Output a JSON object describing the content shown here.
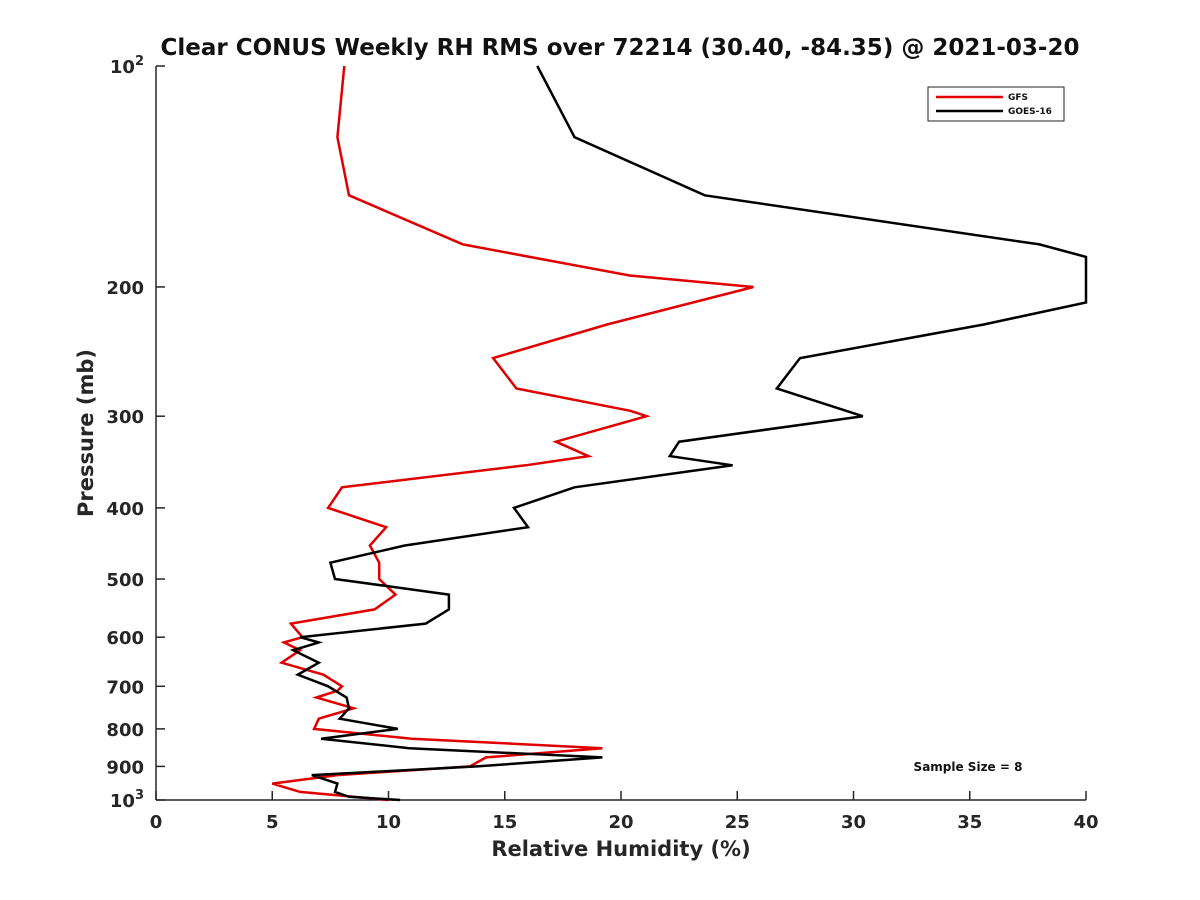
{
  "chart_data": {
    "type": "line",
    "title": "Clear CONUS Weekly RH RMS over 72214 (30.40, -84.35) @ 2021-03-20",
    "xlabel": "Relative Humidity (%)",
    "ylabel": "Pressure (mb)",
    "xlim": [
      0,
      40
    ],
    "ylim": [
      100,
      1000
    ],
    "yscale": "log",
    "yreversed": true,
    "x_ticks": [
      0,
      5,
      10,
      15,
      20,
      25,
      30,
      35,
      40
    ],
    "x_tick_labels": [
      "0",
      "5",
      "10",
      "15",
      "20",
      "25",
      "30",
      "35",
      "40"
    ],
    "y_ticks": [
      100,
      200,
      300,
      400,
      500,
      600,
      700,
      800,
      900,
      1000
    ],
    "y_tick_labels": [
      {
        "base": "10",
        "exp": "2"
      },
      {
        "base": "200",
        "exp": ""
      },
      {
        "base": "300",
        "exp": ""
      },
      {
        "base": "400",
        "exp": ""
      },
      {
        "base": "500",
        "exp": ""
      },
      {
        "base": "600",
        "exp": ""
      },
      {
        "base": "700",
        "exp": ""
      },
      {
        "base": "800",
        "exp": ""
      },
      {
        "base": "900",
        "exp": ""
      },
      {
        "base": "10",
        "exp": "3"
      }
    ],
    "grid": false,
    "legend_position": "top-right",
    "annotation": "Sample Size = 8",
    "series": [
      {
        "name": "GFS",
        "color": "#e00000",
        "points": [
          [
            8.1,
            100
          ],
          [
            7.8,
            125
          ],
          [
            8.3,
            150
          ],
          [
            13.2,
            175
          ],
          [
            20.4,
            193
          ],
          [
            25.7,
            200
          ],
          [
            19.4,
            225
          ],
          [
            14.5,
            250
          ],
          [
            15.5,
            275
          ],
          [
            20.4,
            295
          ],
          [
            21.1,
            300
          ],
          [
            17.2,
            325
          ],
          [
            18.6,
            340
          ],
          [
            15.9,
            350
          ],
          [
            8.0,
            375
          ],
          [
            7.4,
            400
          ],
          [
            9.9,
            425
          ],
          [
            9.2,
            450
          ],
          [
            9.6,
            475
          ],
          [
            9.6,
            500
          ],
          [
            10.3,
            525
          ],
          [
            9.4,
            550
          ],
          [
            5.8,
            575
          ],
          [
            6.3,
            600
          ],
          [
            5.5,
            610
          ],
          [
            6.2,
            625
          ],
          [
            5.4,
            650
          ],
          [
            7.2,
            675
          ],
          [
            8.0,
            700
          ],
          [
            7.8,
            710
          ],
          [
            6.9,
            725
          ],
          [
            8.5,
            750
          ],
          [
            7.0,
            775
          ],
          [
            6.8,
            800
          ],
          [
            11.0,
            825
          ],
          [
            19.2,
            850
          ],
          [
            14.2,
            875
          ],
          [
            13.5,
            900
          ],
          [
            7.8,
            925
          ],
          [
            5.0,
            950
          ],
          [
            6.2,
            975
          ],
          [
            10.0,
            1000
          ]
        ]
      },
      {
        "name": "GOES-16",
        "color": "#000000",
        "points": [
          [
            16.4,
            100
          ],
          [
            18.0,
            125
          ],
          [
            23.6,
            150
          ],
          [
            38.0,
            175
          ],
          [
            40.0,
            182
          ],
          [
            40.0,
            210
          ],
          [
            35.6,
            225
          ],
          [
            27.7,
            250
          ],
          [
            26.7,
            275
          ],
          [
            30.4,
            300
          ],
          [
            22.5,
            325
          ],
          [
            22.1,
            340
          ],
          [
            24.8,
            350
          ],
          [
            18.0,
            375
          ],
          [
            15.4,
            400
          ],
          [
            16.0,
            425
          ],
          [
            10.7,
            450
          ],
          [
            7.5,
            475
          ],
          [
            7.7,
            500
          ],
          [
            12.6,
            525
          ],
          [
            12.6,
            550
          ],
          [
            11.6,
            575
          ],
          [
            6.2,
            600
          ],
          [
            7.0,
            610
          ],
          [
            5.9,
            625
          ],
          [
            7.0,
            650
          ],
          [
            6.1,
            675
          ],
          [
            7.4,
            700
          ],
          [
            8.2,
            725
          ],
          [
            8.3,
            750
          ],
          [
            7.9,
            775
          ],
          [
            10.4,
            800
          ],
          [
            7.1,
            825
          ],
          [
            10.9,
            850
          ],
          [
            19.2,
            875
          ],
          [
            13.8,
            900
          ],
          [
            6.7,
            925
          ],
          [
            7.8,
            950
          ],
          [
            7.7,
            975
          ],
          [
            8.3,
            990
          ],
          [
            10.5,
            1000
          ]
        ]
      }
    ]
  }
}
